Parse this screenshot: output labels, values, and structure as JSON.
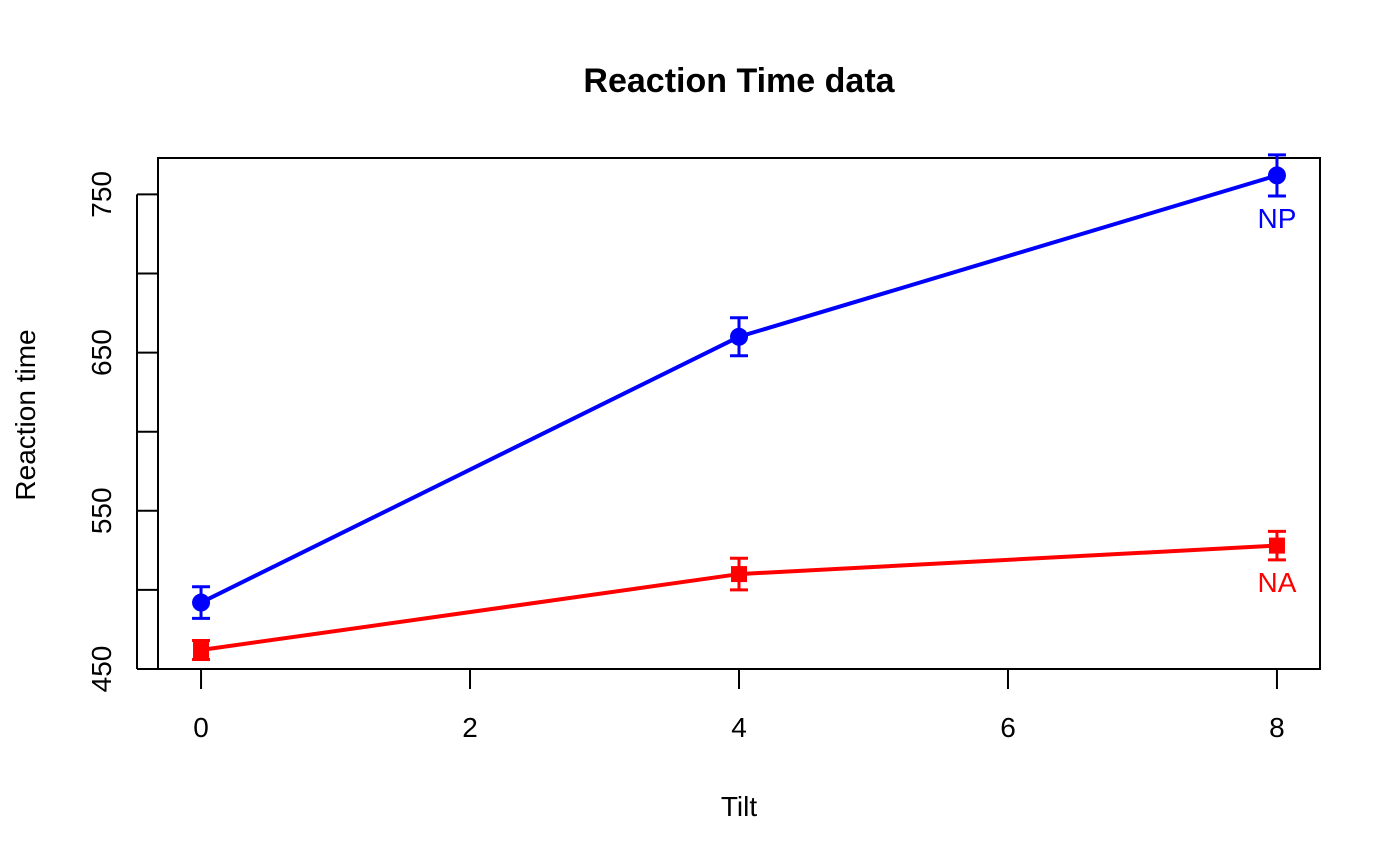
{
  "chart_data": {
    "type": "line",
    "title": "Reaction Time data",
    "xlabel": "Tilt",
    "ylabel": "Reaction time",
    "xlim": [
      -0.32,
      8.32
    ],
    "ylim": [
      450,
      773
    ],
    "x_ticks": [
      0,
      2,
      4,
      6,
      8
    ],
    "y_ticks": [
      450,
      500,
      550,
      600,
      650,
      700,
      750
    ],
    "y_tick_labels": [
      450,
      550,
      650,
      750
    ],
    "grid": false,
    "series": [
      {
        "name": "NP",
        "color": "#0000ff",
        "marker": "circle",
        "x": [
          0,
          4,
          8
        ],
        "y": [
          492,
          660,
          762
        ],
        "error_low": [
          482,
          648,
          749
        ],
        "error_high": [
          502,
          672,
          775
        ]
      },
      {
        "name": "NA",
        "color": "#ff0000",
        "marker": "square",
        "x": [
          0,
          4,
          8
        ],
        "y": [
          462,
          510,
          528
        ],
        "error_low": [
          456,
          500,
          519
        ],
        "error_high": [
          468,
          520,
          537
        ]
      }
    ]
  }
}
